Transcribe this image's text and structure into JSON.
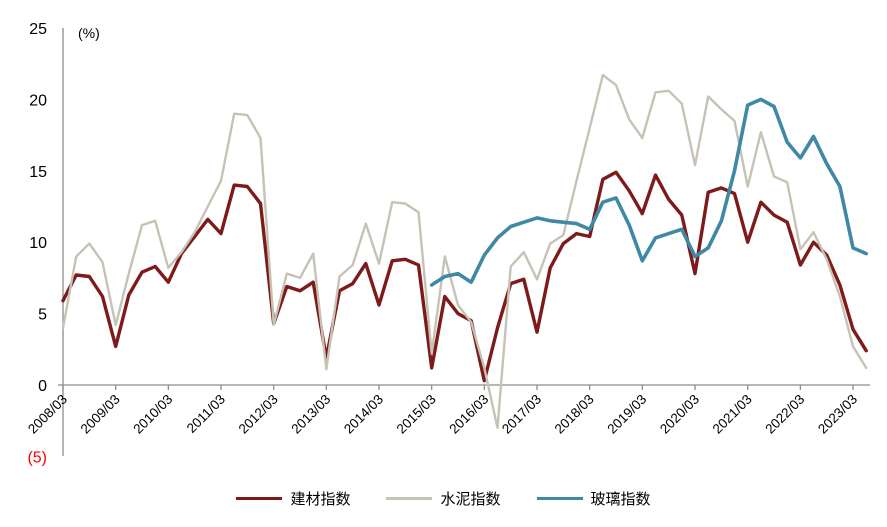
{
  "chart_data": {
    "type": "line",
    "title": "",
    "unit_label": "(%)",
    "grid": false,
    "legend_position": "bottom",
    "ylim": [
      -5,
      25
    ],
    "axis_color": "#8c8c8c",
    "negative_tick_color": "#ff0000",
    "y_ticks": [
      {
        "label": "25",
        "value": 25
      },
      {
        "label": "20",
        "value": 20
      },
      {
        "label": "15",
        "value": 15
      },
      {
        "label": "10",
        "value": 10
      },
      {
        "label": "5",
        "value": 5
      },
      {
        "label": "0",
        "value": 0
      },
      {
        "label": "(5)",
        "value": -5,
        "negative": true
      }
    ],
    "x_tick_labels": [
      "2008/03",
      "2009/03",
      "2010/03",
      "2011/03",
      "2012/03",
      "2013/03",
      "2014/03",
      "2015/03",
      "2016/03",
      "2017/03",
      "2018/03",
      "2019/03",
      "2020/03",
      "2021/03",
      "2022/03",
      "2023/03"
    ],
    "categories": [
      "2008/03",
      "2008/06",
      "2008/09",
      "2008/12",
      "2009/03",
      "2009/06",
      "2009/09",
      "2009/12",
      "2010/03",
      "2010/06",
      "2010/09",
      "2010/12",
      "2011/03",
      "2011/06",
      "2011/09",
      "2011/12",
      "2012/03",
      "2012/06",
      "2012/09",
      "2012/12",
      "2013/03",
      "2013/06",
      "2013/09",
      "2013/12",
      "2014/03",
      "2014/06",
      "2014/09",
      "2014/12",
      "2015/03",
      "2015/06",
      "2015/09",
      "2015/12",
      "2016/03",
      "2016/06",
      "2016/09",
      "2016/12",
      "2017/03",
      "2017/06",
      "2017/09",
      "2017/12",
      "2018/03",
      "2018/06",
      "2018/09",
      "2018/12",
      "2019/03",
      "2019/06",
      "2019/09",
      "2019/12",
      "2020/03",
      "2020/06",
      "2020/09",
      "2020/12",
      "2021/03",
      "2021/06",
      "2021/09",
      "2021/12",
      "2022/03",
      "2022/06",
      "2022/09",
      "2022/12",
      "2023/03",
      "2023/06"
    ],
    "series": [
      {
        "name": "建材指数",
        "color": "#7e1a1a",
        "stroke_width": 3.4,
        "values": [
          5.9,
          7.7,
          7.6,
          6.2,
          2.7,
          6.3,
          7.9,
          8.3,
          7.2,
          9.2,
          10.4,
          11.6,
          10.6,
          14.0,
          13.9,
          12.7,
          4.3,
          6.9,
          6.6,
          7.2,
          1.9,
          6.6,
          7.1,
          8.5,
          5.6,
          8.7,
          8.8,
          8.4,
          1.2,
          6.2,
          5.0,
          4.5,
          0.3,
          4.0,
          7.1,
          7.4,
          3.7,
          8.2,
          9.9,
          10.6,
          10.4,
          14.4,
          14.9,
          13.6,
          12.0,
          14.7,
          13.0,
          11.9,
          7.8,
          13.5,
          13.8,
          13.4,
          10.0,
          12.8,
          11.9,
          11.4,
          8.4,
          10.0,
          9.1,
          7.0,
          3.9,
          2.4
        ]
      },
      {
        "name": "水泥指数",
        "color": "#c6c3b5",
        "stroke_width": 2.4,
        "values": [
          4.0,
          9.0,
          9.9,
          8.6,
          4.2,
          7.8,
          11.2,
          11.5,
          8.2,
          9.3,
          10.7,
          12.5,
          14.3,
          19.0,
          18.9,
          17.3,
          4.2,
          7.8,
          7.5,
          9.2,
          1.1,
          7.6,
          8.4,
          11.3,
          8.5,
          12.8,
          12.7,
          12.1,
          2.2,
          9.0,
          5.6,
          4.4,
          1.2,
          -3.0,
          8.3,
          9.3,
          7.4,
          9.9,
          10.5,
          14.3,
          18.0,
          21.7,
          21.0,
          18.6,
          17.3,
          20.5,
          20.6,
          19.7,
          15.4,
          20.2,
          19.3,
          18.5,
          13.9,
          17.7,
          14.6,
          14.2,
          9.5,
          10.7,
          8.8,
          6.2,
          2.7,
          1.2
        ]
      },
      {
        "name": "玻璃指数",
        "color": "#3f89a6",
        "stroke_width": 3.6,
        "values": [
          null,
          null,
          null,
          null,
          null,
          null,
          null,
          null,
          null,
          null,
          null,
          null,
          null,
          null,
          null,
          null,
          null,
          null,
          null,
          null,
          null,
          null,
          null,
          null,
          null,
          null,
          null,
          null,
          7.0,
          7.6,
          7.8,
          7.2,
          9.1,
          10.3,
          11.1,
          11.4,
          11.7,
          11.5,
          11.4,
          11.3,
          10.9,
          12.8,
          13.1,
          11.2,
          8.7,
          10.3,
          10.6,
          10.9,
          9.0,
          9.6,
          11.5,
          15.0,
          19.6,
          20.0,
          19.5,
          17.0,
          15.9,
          17.4,
          15.5,
          13.9,
          9.6,
          9.2
        ]
      }
    ]
  }
}
